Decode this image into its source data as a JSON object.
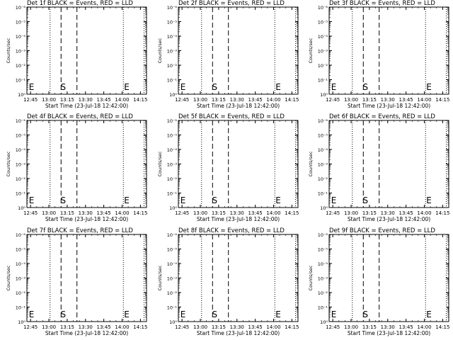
{
  "chart_data": [
    {
      "type": "line",
      "title": "Det 1f BLACK = Events, RED = LLD",
      "xlabel": "Start Time (23-Jul-18 12:42:00)",
      "ylabel": "Counts/sec",
      "x_ticks": [
        "12:45",
        "13:00",
        "13:15",
        "13:30",
        "13:45",
        "14:00",
        "14:15"
      ],
      "y_ticks": [
        "10⁰",
        "10⁻¹",
        "10⁻²",
        "10⁻³",
        "10⁻⁴",
        "10⁻⁵",
        "10⁻⁶"
      ],
      "y_scale": "log",
      "dotted_lines": [
        "13:01",
        "14:01",
        "14:18"
      ],
      "dashed_lines": [
        "13:10",
        "13:23"
      ],
      "markers": [
        {
          "label": "E",
          "x": "12:43"
        },
        {
          "label": "S",
          "x": "13:09"
        },
        {
          "label": "E",
          "x": "14:01"
        }
      ],
      "series": []
    },
    {
      "type": "line",
      "title": "Det 2f BLACK = Events, RED = LLD",
      "xlabel": "Start Time (23-Jul-18 12:42:00)",
      "ylabel": "Counts/sec",
      "x_ticks": [
        "12:45",
        "13:00",
        "13:15",
        "13:30",
        "13:45",
        "14:00",
        "14:15"
      ],
      "y_ticks": [
        "10⁰",
        "10⁻¹",
        "10⁻²",
        "10⁻³",
        "10⁻⁴",
        "10⁻⁵",
        "10⁻⁶"
      ],
      "y_scale": "log",
      "dotted_lines": [
        "13:01",
        "14:01",
        "14:18"
      ],
      "dashed_lines": [
        "13:10",
        "13:23"
      ],
      "markers": [
        {
          "label": "E",
          "x": "12:43"
        },
        {
          "label": "S",
          "x": "13:09"
        },
        {
          "label": "E",
          "x": "14:01"
        }
      ],
      "series": []
    },
    {
      "type": "line",
      "title": "Det 3f BLACK = Events, RED = LLD",
      "xlabel": "Start Time (23-Jul-18 12:42:00)",
      "ylabel": "Counts/sec",
      "x_ticks": [
        "12:45",
        "13:00",
        "13:15",
        "13:30",
        "13:45",
        "14:00",
        "14:15"
      ],
      "y_ticks": [
        "10⁰",
        "10⁻¹",
        "10⁻²",
        "10⁻³",
        "10⁻⁴",
        "10⁻⁵",
        "10⁻⁶"
      ],
      "y_scale": "log",
      "dotted_lines": [
        "13:01",
        "14:01",
        "14:18"
      ],
      "dashed_lines": [
        "13:10",
        "13:23"
      ],
      "markers": [
        {
          "label": "E",
          "x": "12:43"
        },
        {
          "label": "S",
          "x": "13:09"
        },
        {
          "label": "E",
          "x": "14:01"
        }
      ],
      "series": []
    },
    {
      "type": "line",
      "title": "Det 4f BLACK = Events, RED = LLD",
      "xlabel": "Start Time (23-Jul-18 12:42:00)",
      "ylabel": "Counts/sec",
      "x_ticks": [
        "12:45",
        "13:00",
        "13:15",
        "13:30",
        "13:45",
        "14:00",
        "14:15"
      ],
      "y_ticks": [
        "10⁰",
        "10⁻¹",
        "10⁻²",
        "10⁻³",
        "10⁻⁴",
        "10⁻⁵",
        "10⁻⁶"
      ],
      "y_scale": "log",
      "dotted_lines": [
        "13:01",
        "14:01",
        "14:18"
      ],
      "dashed_lines": [
        "13:10",
        "13:23"
      ],
      "markers": [
        {
          "label": "E",
          "x": "12:43"
        },
        {
          "label": "S",
          "x": "13:09"
        },
        {
          "label": "E",
          "x": "14:01"
        }
      ],
      "series": []
    },
    {
      "type": "line",
      "title": "Det 5f BLACK = Events, RED = LLD",
      "xlabel": "Start Time (23-Jul-18 12:42:00)",
      "ylabel": "Counts/sec",
      "x_ticks": [
        "12:45",
        "13:00",
        "13:15",
        "13:30",
        "13:45",
        "14:00",
        "14:15"
      ],
      "y_ticks": [
        "10⁰",
        "10⁻¹",
        "10⁻²",
        "10⁻³",
        "10⁻⁴",
        "10⁻⁵",
        "10⁻⁶"
      ],
      "y_scale": "log",
      "dotted_lines": [
        "13:01",
        "14:01",
        "14:18"
      ],
      "dashed_lines": [
        "13:10",
        "13:23"
      ],
      "markers": [
        {
          "label": "E",
          "x": "12:43"
        },
        {
          "label": "S",
          "x": "13:09"
        },
        {
          "label": "E",
          "x": "14:01"
        }
      ],
      "series": []
    },
    {
      "type": "line",
      "title": "Det 6f BLACK = Events, RED = LLD",
      "xlabel": "Start Time (23-Jul-18 12:42:00)",
      "ylabel": "Counts/sec",
      "x_ticks": [
        "12:45",
        "13:00",
        "13:15",
        "13:30",
        "13:45",
        "14:00",
        "14:15"
      ],
      "y_ticks": [
        "10⁰",
        "10⁻¹",
        "10⁻²",
        "10⁻³",
        "10⁻⁴",
        "10⁻⁵",
        "10⁻⁶"
      ],
      "y_scale": "log",
      "dotted_lines": [
        "13:01",
        "14:01",
        "14:18"
      ],
      "dashed_lines": [
        "13:10",
        "13:23"
      ],
      "markers": [
        {
          "label": "E",
          "x": "12:43"
        },
        {
          "label": "S",
          "x": "13:09"
        },
        {
          "label": "E",
          "x": "14:01"
        }
      ],
      "series": []
    },
    {
      "type": "line",
      "title": "Det 7f BLACK = Events, RED = LLD",
      "xlabel": "Start Time (23-Jul-18 12:42:00)",
      "ylabel": "Counts/sec",
      "x_ticks": [
        "12:45",
        "13:00",
        "13:15",
        "13:30",
        "13:45",
        "14:00",
        "14:15"
      ],
      "y_ticks": [
        "10⁰",
        "10⁻¹",
        "10⁻²",
        "10⁻³",
        "10⁻⁴",
        "10⁻⁵",
        "10⁻⁶"
      ],
      "y_scale": "log",
      "dotted_lines": [
        "13:01",
        "14:01",
        "14:18"
      ],
      "dashed_lines": [
        "13:10",
        "13:23"
      ],
      "markers": [
        {
          "label": "E",
          "x": "12:43"
        },
        {
          "label": "S",
          "x": "13:09"
        },
        {
          "label": "E",
          "x": "14:01"
        }
      ],
      "series": []
    },
    {
      "type": "line",
      "title": "Det 8f BLACK = Events, RED = LLD",
      "xlabel": "Start Time (23-Jul-18 12:42:00)",
      "ylabel": "Counts/sec",
      "x_ticks": [
        "12:45",
        "13:00",
        "13:15",
        "13:30",
        "13:45",
        "14:00",
        "14:15"
      ],
      "y_ticks": [
        "10⁰",
        "10⁻¹",
        "10⁻²",
        "10⁻³",
        "10⁻⁴",
        "10⁻⁵",
        "10⁻⁶"
      ],
      "y_scale": "log",
      "dotted_lines": [
        "13:01",
        "14:01",
        "14:18"
      ],
      "dashed_lines": [
        "13:10",
        "13:23"
      ],
      "markers": [
        {
          "label": "E",
          "x": "12:43"
        },
        {
          "label": "S",
          "x": "13:09"
        },
        {
          "label": "E",
          "x": "14:01"
        }
      ],
      "series": []
    },
    {
      "type": "line",
      "title": "Det 9f BLACK = Events, RED = LLD",
      "xlabel": "Start Time (23-Jul-18 12:42:00)",
      "ylabel": "Counts/sec",
      "x_ticks": [
        "12:45",
        "13:00",
        "13:15",
        "13:30",
        "13:45",
        "14:00",
        "14:15"
      ],
      "y_ticks": [
        "10⁰",
        "10⁻¹",
        "10⁻²",
        "10⁻³",
        "10⁻⁴",
        "10⁻⁵",
        "10⁻⁶"
      ],
      "y_scale": "log",
      "dotted_lines": [
        "13:01",
        "14:01",
        "14:18"
      ],
      "dashed_lines": [
        "13:10",
        "13:23"
      ],
      "markers": [
        {
          "label": "E",
          "x": "12:43"
        },
        {
          "label": "S",
          "x": "13:09"
        },
        {
          "label": "E",
          "x": "14:01"
        }
      ],
      "series": []
    }
  ],
  "colors": {
    "background": "#ffffff",
    "axes": "#000000",
    "events": "#000000",
    "lld": "#ff0000"
  }
}
